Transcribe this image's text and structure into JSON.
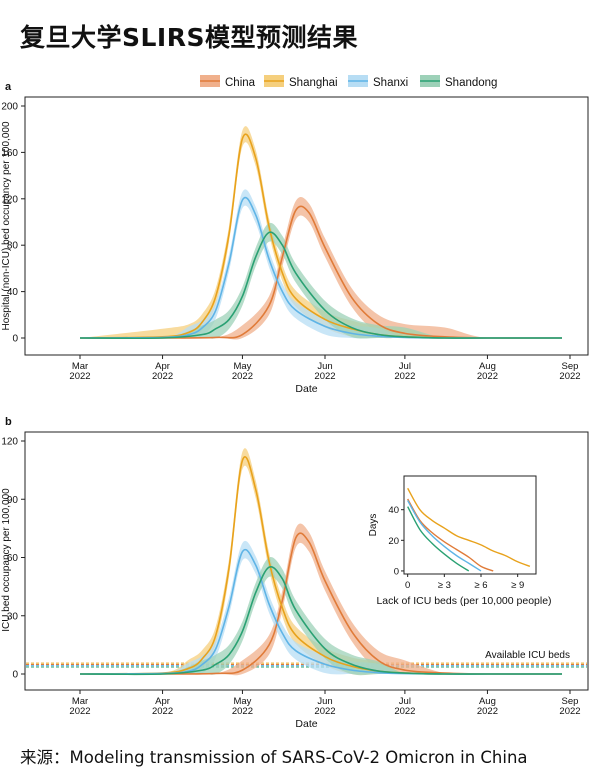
{
  "page": {
    "title": "复旦大学SLIRS模型预测结果",
    "source": "来源：Modeling transmission of SARS-CoV-2 Omicron in China"
  },
  "legend": {
    "placement": "top-center",
    "items": [
      {
        "name": "China",
        "color": "#e07b39",
        "band": "#f0b08c"
      },
      {
        "name": "Shanghai",
        "color": "#e8a21c",
        "band": "#f5cf7d"
      },
      {
        "name": "Shanxi",
        "color": "#5fb4e6",
        "band": "#b7ddf4"
      },
      {
        "name": "Shandong",
        "color": "#2aa173",
        "band": "#9dd1b8"
      }
    ]
  },
  "chart_data": [
    {
      "panel": "a",
      "type": "line",
      "xlabel": "Date",
      "ylabel": "Hospital (non-ICU) bed occupancy per 100,000",
      "x_ticks": [
        {
          "line1": "Mar",
          "line2": "2022",
          "date": "2022-03-01"
        },
        {
          "line1": "Apr",
          "line2": "2022",
          "date": "2022-04-01"
        },
        {
          "line1": "May",
          "line2": "2022",
          "date": "2022-05-01"
        },
        {
          "line1": "Jun",
          "line2": "2022",
          "date": "2022-06-01"
        },
        {
          "line1": "Jul",
          "line2": "2022",
          "date": "2022-07-01"
        },
        {
          "line1": "Aug",
          "line2": "2022",
          "date": "2022-08-01"
        },
        {
          "line1": "Sep",
          "line2": "2022",
          "date": "2022-09-01"
        }
      ],
      "xlim": [
        "2022-03-01",
        "2022-08-29"
      ],
      "ylim": [
        0,
        200
      ],
      "y_ticks": [
        0,
        40,
        80,
        120,
        160,
        200
      ],
      "series": [
        {
          "name": "China",
          "x": [
            "2022-03-01",
            "2022-04-01",
            "2022-04-21",
            "2022-05-01",
            "2022-05-11",
            "2022-05-16",
            "2022-05-21",
            "2022-05-26",
            "2022-06-01",
            "2022-06-11",
            "2022-06-21",
            "2022-07-01",
            "2022-07-16",
            "2022-08-01",
            "2022-08-29"
          ],
          "y": [
            0,
            0,
            0.5,
            3,
            28,
            70,
            110,
            108,
            78,
            35,
            12,
            4,
            1,
            0,
            0
          ],
          "band": 8
        },
        {
          "name": "Shanghai",
          "x": [
            "2022-03-01",
            "2022-04-01",
            "2022-04-11",
            "2022-04-16",
            "2022-04-21",
            "2022-04-26",
            "2022-05-01",
            "2022-05-06",
            "2022-05-11",
            "2022-05-16",
            "2022-05-21",
            "2022-06-01",
            "2022-06-11",
            "2022-06-21",
            "2022-07-01",
            "2022-07-16",
            "2022-08-01",
            "2022-08-29"
          ],
          "y": [
            0,
            1,
            5,
            14,
            36,
            90,
            172,
            155,
            96,
            56,
            34,
            16,
            8,
            3,
            1,
            0,
            0,
            0
          ],
          "band": 7
        },
        {
          "name": "Shanxi",
          "x": [
            "2022-03-01",
            "2022-04-01",
            "2022-04-11",
            "2022-04-16",
            "2022-04-21",
            "2022-04-26",
            "2022-05-01",
            "2022-05-06",
            "2022-05-11",
            "2022-05-16",
            "2022-05-21",
            "2022-06-01",
            "2022-06-11",
            "2022-06-21",
            "2022-07-01",
            "2022-07-16",
            "2022-08-01",
            "2022-08-29"
          ],
          "y": [
            0,
            0.5,
            3,
            9,
            24,
            65,
            119,
            106,
            68,
            40,
            24,
            10,
            4,
            1.5,
            0.5,
            0,
            0,
            0
          ],
          "band": 7
        },
        {
          "name": "Shandong",
          "x": [
            "2022-03-01",
            "2022-04-01",
            "2022-04-16",
            "2022-04-21",
            "2022-04-26",
            "2022-05-01",
            "2022-05-06",
            "2022-05-11",
            "2022-05-16",
            "2022-05-21",
            "2022-06-01",
            "2022-06-11",
            "2022-06-21",
            "2022-07-01",
            "2022-07-16",
            "2022-08-01",
            "2022-08-29"
          ],
          "y": [
            0,
            0,
            3,
            8,
            16,
            36,
            70,
            91,
            80,
            56,
            24,
            9,
            3,
            1,
            0,
            0,
            0
          ],
          "band": 8
        }
      ]
    },
    {
      "panel": "b",
      "type": "line",
      "xlabel": "Date",
      "ylabel": "ICU bed occupancy per 100,000",
      "x_ticks": [
        {
          "line1": "Mar",
          "line2": "2022",
          "date": "2022-03-01"
        },
        {
          "line1": "Apr",
          "line2": "2022",
          "date": "2022-04-01"
        },
        {
          "line1": "May",
          "line2": "2022",
          "date": "2022-05-01"
        },
        {
          "line1": "Jun",
          "line2": "2022",
          "date": "2022-06-01"
        },
        {
          "line1": "Jul",
          "line2": "2022",
          "date": "2022-07-01"
        },
        {
          "line1": "Aug",
          "line2": "2022",
          "date": "2022-08-01"
        },
        {
          "line1": "Sep",
          "line2": "2022",
          "date": "2022-09-01"
        }
      ],
      "xlim": [
        "2022-03-01",
        "2022-08-29"
      ],
      "ylim": [
        0,
        120
      ],
      "y_ticks": [
        0,
        30,
        60,
        90,
        120
      ],
      "annotation": "Available ICU beds",
      "thresholds": [
        {
          "value": 5.6,
          "color": "#e8a21c"
        },
        {
          "value": 4.9,
          "color": "#e07b39"
        },
        {
          "value": 4.3,
          "color": "#5fb4e6"
        },
        {
          "value": 3.6,
          "color": "#2aa173"
        }
      ],
      "series": [
        {
          "name": "China",
          "x": [
            "2022-03-01",
            "2022-04-01",
            "2022-04-21",
            "2022-05-01",
            "2022-05-11",
            "2022-05-16",
            "2022-05-21",
            "2022-05-26",
            "2022-06-01",
            "2022-06-11",
            "2022-06-21",
            "2022-07-01",
            "2022-07-16",
            "2022-08-01",
            "2022-08-29"
          ],
          "y": [
            0,
            0,
            0.3,
            2,
            15,
            38,
            70,
            68,
            48,
            22,
            7,
            2,
            0.5,
            0,
            0
          ],
          "band": 5
        },
        {
          "name": "Shanghai",
          "x": [
            "2022-03-01",
            "2022-04-01",
            "2022-04-11",
            "2022-04-16",
            "2022-04-21",
            "2022-04-26",
            "2022-05-01",
            "2022-05-06",
            "2022-05-11",
            "2022-05-16",
            "2022-05-21",
            "2022-06-01",
            "2022-06-11",
            "2022-06-21",
            "2022-07-01",
            "2022-07-16",
            "2022-08-01",
            "2022-08-29"
          ],
          "y": [
            0,
            0.5,
            3,
            8,
            20,
            55,
            110,
            95,
            58,
            34,
            20,
            9,
            4,
            1.5,
            0.5,
            0,
            0,
            0
          ],
          "band": 4.5
        },
        {
          "name": "Shanxi",
          "x": [
            "2022-03-01",
            "2022-04-01",
            "2022-04-11",
            "2022-04-16",
            "2022-04-21",
            "2022-04-26",
            "2022-05-01",
            "2022-05-06",
            "2022-05-11",
            "2022-05-16",
            "2022-05-21",
            "2022-06-01",
            "2022-06-11",
            "2022-06-21",
            "2022-07-01",
            "2022-07-16",
            "2022-08-01",
            "2022-08-29"
          ],
          "y": [
            0,
            0.3,
            1.5,
            5,
            13,
            35,
            63,
            56,
            36,
            21,
            12,
            5,
            2,
            0.7,
            0.2,
            0,
            0,
            0
          ],
          "band": 4.5
        },
        {
          "name": "Shandong",
          "x": [
            "2022-03-01",
            "2022-04-01",
            "2022-04-16",
            "2022-04-21",
            "2022-04-26",
            "2022-05-01",
            "2022-05-06",
            "2022-05-11",
            "2022-05-16",
            "2022-05-21",
            "2022-06-01",
            "2022-06-11",
            "2022-06-21",
            "2022-07-01",
            "2022-07-16",
            "2022-08-01",
            "2022-08-29"
          ],
          "y": [
            0,
            0,
            2,
            5,
            10,
            22,
            42,
            55,
            49,
            33,
            13,
            5,
            1.5,
            0.5,
            0,
            0,
            0
          ],
          "band": 5
        }
      ]
    },
    {
      "panel": "b-inset",
      "type": "line",
      "xlabel": "Lack of ICU beds (per 10,000 people)",
      "ylabel": "Days",
      "xlim": [
        -0.3,
        10.5
      ],
      "ylim": [
        -2,
        62
      ],
      "x_ticks": [
        {
          "label": "0",
          "value": 0
        },
        {
          "label": "≥ 3",
          "value": 3
        },
        {
          "label": "≥ 6",
          "value": 6
        },
        {
          "label": "≥ 9",
          "value": 9
        }
      ],
      "y_ticks": [
        0,
        20,
        40
      ],
      "series": [
        {
          "name": "China",
          "x": [
            0,
            1,
            2,
            3,
            4,
            5,
            6,
            7
          ],
          "y": [
            47,
            33,
            25,
            19,
            14,
            9,
            3,
            0
          ]
        },
        {
          "name": "Shanghai",
          "x": [
            0,
            1,
            2,
            3,
            4,
            5,
            6,
            7,
            8,
            9,
            10
          ],
          "y": [
            54,
            40,
            33,
            28,
            23,
            20,
            17,
            13,
            10,
            6,
            3
          ]
        },
        {
          "name": "Shanxi",
          "x": [
            0,
            1,
            2,
            3,
            4,
            5,
            6
          ],
          "y": [
            46,
            32,
            23,
            16,
            10,
            5,
            0
          ]
        },
        {
          "name": "Shandong",
          "x": [
            0,
            1,
            2,
            3,
            4,
            5
          ],
          "y": [
            42,
            27,
            18,
            11,
            5,
            0
          ]
        }
      ]
    }
  ]
}
